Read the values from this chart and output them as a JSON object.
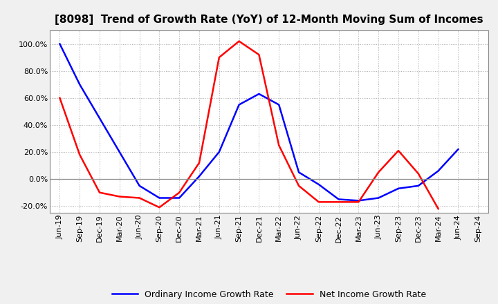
{
  "title": "[8098]  Trend of Growth Rate (YoY) of 12-Month Moving Sum of Incomes",
  "x_labels": [
    "Jun-19",
    "Sep-19",
    "Dec-19",
    "Mar-20",
    "Jun-20",
    "Sep-20",
    "Dec-20",
    "Mar-21",
    "Jun-21",
    "Sep-21",
    "Dec-21",
    "Mar-22",
    "Jun-22",
    "Sep-22",
    "Dec-22",
    "Mar-23",
    "Jun-23",
    "Sep-23",
    "Dec-23",
    "Mar-24",
    "Jun-24",
    "Sep-24"
  ],
  "ordinary_income": [
    1.0,
    0.7,
    0.45,
    0.2,
    -0.05,
    -0.14,
    -0.14,
    0.02,
    0.2,
    0.55,
    0.63,
    0.55,
    0.05,
    -0.04,
    -0.15,
    -0.16,
    -0.14,
    -0.07,
    -0.05,
    0.06,
    0.22,
    null
  ],
  "net_income": [
    0.6,
    0.18,
    -0.1,
    -0.13,
    -0.14,
    -0.21,
    -0.1,
    0.12,
    0.9,
    1.02,
    0.92,
    0.25,
    -0.05,
    -0.17,
    -0.17,
    -0.17,
    0.05,
    0.21,
    0.04,
    -0.22,
    null,
    null
  ],
  "ylim": [
    -0.25,
    1.1
  ],
  "line_color_ordinary": "#0000ff",
  "line_color_net": "#ff0000",
  "figure_facecolor": "#f0f0f0",
  "axes_facecolor": "#ffffff",
  "grid_color": "#aaaaaa",
  "zero_line_color": "#888888",
  "spine_color": "#888888",
  "legend_ordinary": "Ordinary Income Growth Rate",
  "legend_net": "Net Income Growth Rate",
  "title_fontsize": 11,
  "tick_fontsize": 8,
  "legend_fontsize": 9
}
